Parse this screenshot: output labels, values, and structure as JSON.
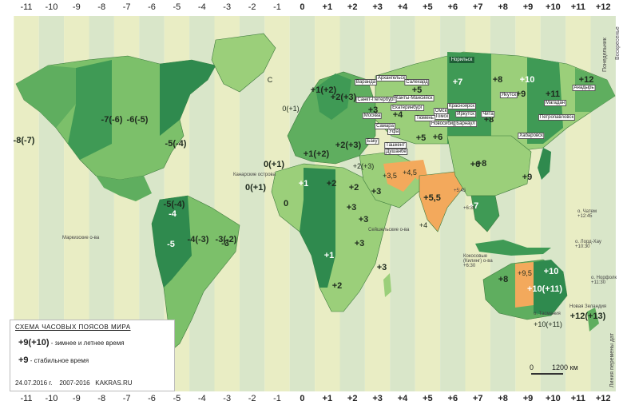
{
  "zones_top": [
    "-11",
    "-10",
    "-9",
    "-8",
    "-7",
    "-6",
    "-5",
    "-4",
    "-3",
    "-2",
    "-1",
    "0",
    "+1",
    "+2",
    "+3",
    "+4",
    "+5",
    "+6",
    "+7",
    "+8",
    "+9",
    "+10",
    "+11",
    "+12"
  ],
  "zones_bottom": [
    "-11",
    "-10",
    "-9",
    "-8",
    "-7",
    "-6",
    "-5",
    "-4",
    "-3",
    "-2",
    "-1",
    "0",
    "+1",
    "+2",
    "+3",
    "+4",
    "+5",
    "+6",
    "+7",
    "+8",
    "+9",
    "+10",
    "+11",
    "+12"
  ],
  "labels": {
    "alaska": "-8(-7)",
    "canada_w": "-7(-6)",
    "canada_c": "-6(-5)",
    "canada_e": "-5(-4)",
    "atlantic": "-4(-3)",
    "greenland": "-3(-2)",
    "iceland_c": "C",
    "uk": "0(+1)",
    "iberia": "0(+1)",
    "canary": "0(+1)",
    "africa_w": "0",
    "africa_c": "+1",
    "africa_c2": "+1",
    "africa_e": "+3",
    "africa_s": "+2",
    "africa_s2": "+2",
    "africa_se": "+3",
    "africa_e2": "+3",
    "madagascar": "+3",
    "europe_c": "+1(+2)",
    "europe_e": "+2(+3)",
    "scand": "+1(+2)",
    "finland": "+2(+3)",
    "moscow_zone": "+3",
    "samara": "+4",
    "ural": "+5",
    "omsk": "+6",
    "krasnoyarsk": "+7",
    "irkutsk": "+8",
    "yakutsk": "+9",
    "vladivostok": "+10",
    "magadan": "+11",
    "kamchatka": "+12",
    "iran": "+3,5",
    "afghan": "+4,5",
    "india": "+5,5",
    "china": "+8",
    "mongolia": "+8",
    "sea": "+7",
    "japan": "+9",
    "arabia": "+3",
    "egypt": "+2",
    "turkey": "+2(+3)",
    "kazakh": "+6",
    "kazakh_w": "+5",
    "australia_w": "+8",
    "australia_c": "+9,5",
    "australia_e": "+10",
    "australia_se": "+10(+11)",
    "nz": "+12(+13)",
    "tasmania": "+10(+11)",
    "brazil_e": "-3",
    "brazil_w": "-4",
    "peru": "-5",
    "argentina": "-3",
    "chile": "-4(-3)",
    "usa_w": "-8(-7)",
    "usa_e": "-5(-4)",
    "mexico": "-6(-5)",
    "cuba": "-5(-4)",
    "cv": "-1",
    "persian": "+4"
  },
  "cities": [
    "Варанда",
    "Архангельск",
    "Ханты-Мансийск",
    "Салехард",
    "Норильск",
    "Якутск",
    "Анадырь",
    "Магадан",
    "Хабаровск",
    "Петропавловск",
    "Санкт-Петербург",
    "Екатеринбург",
    "Москва",
    "Омск",
    "Томск",
    "Новосибирск",
    "Иркутск",
    "Самара",
    "Тюмень",
    "Красноярск",
    "Барнаул",
    "Уфа",
    "Баку",
    "Чита",
    "Душанбе",
    "Ташкент"
  ],
  "city_marks": [
    "Москва",
    "Самара",
    "Екатеринбург",
    "Омск"
  ],
  "notes": {
    "canary": "Канарские острова",
    "pacific": "Маркизские о-ва",
    "marquesas": "Маркизские о-ва",
    "chatham": "о. Чатем\n+12:45",
    "norfolk": "о. Норфолк\n+11:30",
    "lord_howe": "о. Лорд-Хау\n+10:30",
    "nepal": "+5:45",
    "myanmar": "+6:30",
    "cocos": "Кокосовые\n(Килинг) о-ва\n+6:30",
    "tasmania": "о. Тасмания",
    "nz": "Новая Зеландия",
    "date_line": "Линия перемены дат",
    "sunday": "Воскресенье",
    "monday": "Понедельник",
    "chagos": "Сейшельские о-ва"
  },
  "legend": {
    "title": "СХЕМА  ЧАСОВЫХ ПОЯСОВ  МИРА",
    "dst_example": "+9(+10)",
    "dst_text": "- зимнее и летнее время",
    "std_example": "+9",
    "std_text": "- стабильное время",
    "date": "24.07.2016 г.",
    "years": "2007-2016",
    "site": "KAKRAS.RU"
  },
  "scale": {
    "zero": "0",
    "label": "1200 км"
  },
  "colors": {
    "ocean_light": "#e9edc4",
    "ocean_alt": "#d9e6c9",
    "land_light": "#9bcf7a",
    "land_mid": "#5fae5f",
    "land_dark": "#2f8a4e",
    "land_pale": "#c6e29a",
    "half_hour": "#f3a95c"
  }
}
